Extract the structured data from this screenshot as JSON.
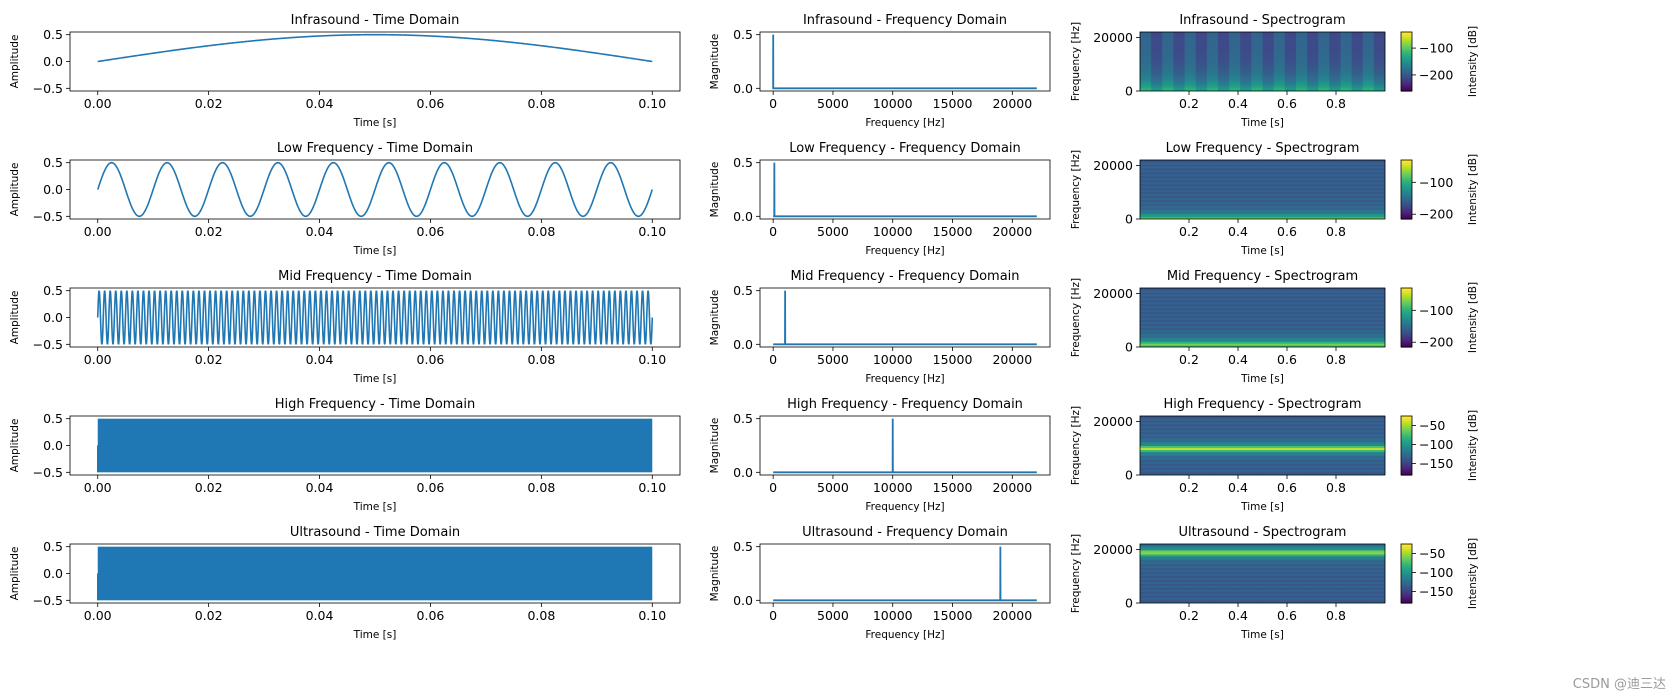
{
  "watermark": "CSDN @迪三达",
  "colors": {
    "line": "#1f77b4",
    "viridis": [
      "#440154",
      "#482878",
      "#3e4989",
      "#31688e",
      "#26828e",
      "#1f9e89",
      "#35b779",
      "#6ece58",
      "#b5de2b",
      "#fde725"
    ]
  },
  "chart_data": [
    {
      "type": "line",
      "title": "Infrasound - Time Domain",
      "xlabel": "Time [s]",
      "ylabel": "Amplitude",
      "signal": {
        "freq_hz": 5,
        "amplitude": 0.5,
        "duration_s": 0.1
      },
      "xlim": [
        -0.005,
        0.105
      ],
      "ylim": [
        -0.55,
        0.55
      ],
      "xticks": [
        0,
        0.02,
        0.04,
        0.06,
        0.08,
        0.1
      ],
      "xtick_labels": [
        "0.00",
        "0.02",
        "0.04",
        "0.06",
        "0.08",
        "0.10"
      ],
      "yticks": [
        -0.5,
        0,
        0.5
      ],
      "ytick_labels": [
        "−0.5",
        "0.0",
        "0.5"
      ]
    },
    {
      "type": "line",
      "title": "Infrasound - Frequency Domain",
      "xlabel": "Frequency [Hz]",
      "ylabel": "Magnitude",
      "x": [
        0,
        5,
        10,
        22050
      ],
      "y": [
        0,
        0.5,
        0,
        0
      ],
      "xlim": [
        -1100,
        23150
      ],
      "ylim": [
        -0.025,
        0.525
      ],
      "xticks": [
        0,
        5000,
        10000,
        15000,
        20000
      ],
      "xtick_labels": [
        "0",
        "5000",
        "10000",
        "15000",
        "20000"
      ],
      "yticks": [
        0,
        0.5
      ],
      "ytick_labels": [
        "0.0",
        "0.5"
      ]
    },
    {
      "type": "heatmap",
      "title": "Infrasound - Spectrogram",
      "xlabel": "Time [s]",
      "ylabel": "Frequency [Hz]",
      "colorbar_label": "Intensity [dB]",
      "xlim": [
        0,
        1
      ],
      "ylim": [
        0,
        22050
      ],
      "xticks": [
        0.2,
        0.4,
        0.6,
        0.8
      ],
      "xtick_labels": [
        "0.2",
        "0.4",
        "0.6",
        "0.8"
      ],
      "yticks": [
        0,
        20000
      ],
      "ytick_labels": [
        "0",
        "20000"
      ],
      "cbar_range": [
        -260,
        -40
      ],
      "cbar_ticks": [
        -100,
        -200
      ],
      "cbar_tick_labels": [
        "−100",
        "−200"
      ],
      "band_hz": 0,
      "pattern": "infra"
    },
    {
      "type": "line",
      "title": "Low Frequency - Time Domain",
      "xlabel": "Time [s]",
      "ylabel": "Amplitude",
      "signal": {
        "freq_hz": 100,
        "amplitude": 0.5,
        "duration_s": 0.1
      },
      "xlim": [
        -0.005,
        0.105
      ],
      "ylim": [
        -0.55,
        0.55
      ],
      "xticks": [
        0,
        0.02,
        0.04,
        0.06,
        0.08,
        0.1
      ],
      "xtick_labels": [
        "0.00",
        "0.02",
        "0.04",
        "0.06",
        "0.08",
        "0.10"
      ],
      "yticks": [
        -0.5,
        0,
        0.5
      ],
      "ytick_labels": [
        "−0.5",
        "0.0",
        "0.5"
      ]
    },
    {
      "type": "line",
      "title": "Low Frequency - Frequency Domain",
      "xlabel": "Frequency [Hz]",
      "ylabel": "Magnitude",
      "x": [
        0,
        90,
        100,
        110,
        22050
      ],
      "y": [
        0,
        0,
        0.5,
        0,
        0
      ],
      "xlim": [
        -1100,
        23150
      ],
      "ylim": [
        -0.025,
        0.525
      ],
      "xticks": [
        0,
        5000,
        10000,
        15000,
        20000
      ],
      "xtick_labels": [
        "0",
        "5000",
        "10000",
        "15000",
        "20000"
      ],
      "yticks": [
        0,
        0.5
      ],
      "ytick_labels": [
        "0.0",
        "0.5"
      ]
    },
    {
      "type": "heatmap",
      "title": "Low Frequency - Spectrogram",
      "xlabel": "Time [s]",
      "ylabel": "Frequency [Hz]",
      "colorbar_label": "Intensity [dB]",
      "xlim": [
        0,
        1
      ],
      "ylim": [
        0,
        22050
      ],
      "xticks": [
        0.2,
        0.4,
        0.6,
        0.8
      ],
      "xtick_labels": [
        "0.2",
        "0.4",
        "0.6",
        "0.8"
      ],
      "yticks": [
        0,
        20000
      ],
      "ytick_labels": [
        "0",
        "20000"
      ],
      "cbar_range": [
        -215,
        -30
      ],
      "cbar_ticks": [
        -100,
        -200
      ],
      "cbar_tick_labels": [
        "−100",
        "−200"
      ],
      "band_hz": 100,
      "pattern": "low"
    },
    {
      "type": "line",
      "title": "Mid Frequency - Time Domain",
      "xlabel": "Time [s]",
      "ylabel": "Amplitude",
      "signal": {
        "freq_hz": 1000,
        "amplitude": 0.5,
        "duration_s": 0.1
      },
      "xlim": [
        -0.005,
        0.105
      ],
      "ylim": [
        -0.55,
        0.55
      ],
      "xticks": [
        0,
        0.02,
        0.04,
        0.06,
        0.08,
        0.1
      ],
      "xtick_labels": [
        "0.00",
        "0.02",
        "0.04",
        "0.06",
        "0.08",
        "0.10"
      ],
      "yticks": [
        -0.5,
        0,
        0.5
      ],
      "ytick_labels": [
        "−0.5",
        "0.0",
        "0.5"
      ]
    },
    {
      "type": "line",
      "title": "Mid Frequency - Frequency Domain",
      "xlabel": "Frequency [Hz]",
      "ylabel": "Magnitude",
      "x": [
        0,
        990,
        1000,
        1010,
        22050
      ],
      "y": [
        0,
        0,
        0.5,
        0,
        0
      ],
      "xlim": [
        -1100,
        23150
      ],
      "ylim": [
        -0.025,
        0.525
      ],
      "xticks": [
        0,
        5000,
        10000,
        15000,
        20000
      ],
      "xtick_labels": [
        "0",
        "5000",
        "10000",
        "15000",
        "20000"
      ],
      "yticks": [
        0,
        0.5
      ],
      "ytick_labels": [
        "0.0",
        "0.5"
      ]
    },
    {
      "type": "heatmap",
      "title": "Mid Frequency - Spectrogram",
      "xlabel": "Time [s]",
      "ylabel": "Frequency [Hz]",
      "colorbar_label": "Intensity [dB]",
      "xlim": [
        0,
        1
      ],
      "ylim": [
        0,
        22050
      ],
      "xticks": [
        0.2,
        0.4,
        0.6,
        0.8
      ],
      "xtick_labels": [
        "0.2",
        "0.4",
        "0.6",
        "0.8"
      ],
      "yticks": [
        0,
        20000
      ],
      "ytick_labels": [
        "0",
        "20000"
      ],
      "cbar_range": [
        -215,
        -30
      ],
      "cbar_ticks": [
        -100,
        -200
      ],
      "cbar_tick_labels": [
        "−100",
        "−200"
      ],
      "band_hz": 1000,
      "pattern": "mid"
    },
    {
      "type": "line",
      "title": "High Frequency - Time Domain",
      "xlabel": "Time [s]",
      "ylabel": "Amplitude",
      "signal": {
        "freq_hz": 10000,
        "amplitude": 0.5,
        "duration_s": 0.1
      },
      "xlim": [
        -0.005,
        0.105
      ],
      "ylim": [
        -0.55,
        0.55
      ],
      "xticks": [
        0,
        0.02,
        0.04,
        0.06,
        0.08,
        0.1
      ],
      "xtick_labels": [
        "0.00",
        "0.02",
        "0.04",
        "0.06",
        "0.08",
        "0.10"
      ],
      "yticks": [
        -0.5,
        0,
        0.5
      ],
      "ytick_labels": [
        "−0.5",
        "0.0",
        "0.5"
      ]
    },
    {
      "type": "line",
      "title": "High Frequency - Frequency Domain",
      "xlabel": "Frequency [Hz]",
      "ylabel": "Magnitude",
      "x": [
        0,
        9990,
        10000,
        10010,
        22050
      ],
      "y": [
        0,
        0,
        0.5,
        0,
        0
      ],
      "xlim": [
        -1100,
        23150
      ],
      "ylim": [
        -0.025,
        0.525
      ],
      "xticks": [
        0,
        5000,
        10000,
        15000,
        20000
      ],
      "xtick_labels": [
        "0",
        "5000",
        "10000",
        "15000",
        "20000"
      ],
      "yticks": [
        0,
        0.5
      ],
      "ytick_labels": [
        "0.0",
        "0.5"
      ]
    },
    {
      "type": "heatmap",
      "title": "High Frequency - Spectrogram",
      "xlabel": "Time [s]",
      "ylabel": "Frequency [Hz]",
      "colorbar_label": "Intensity [dB]",
      "xlim": [
        0,
        1
      ],
      "ylim": [
        0,
        22050
      ],
      "xticks": [
        0.2,
        0.4,
        0.6,
        0.8
      ],
      "xtick_labels": [
        "0.2",
        "0.4",
        "0.6",
        "0.8"
      ],
      "yticks": [
        0,
        20000
      ],
      "ytick_labels": [
        "0",
        "20000"
      ],
      "cbar_range": [
        -180,
        -25
      ],
      "cbar_ticks": [
        -50,
        -100,
        -150
      ],
      "cbar_tick_labels": [
        "−50",
        "−100",
        "−150"
      ],
      "band_hz": 10000,
      "pattern": "band"
    },
    {
      "type": "line",
      "title": "Ultrasound - Time Domain",
      "xlabel": "Time [s]",
      "ylabel": "Amplitude",
      "signal": {
        "freq_hz": 19000,
        "amplitude": 0.5,
        "duration_s": 0.1
      },
      "xlim": [
        -0.005,
        0.105
      ],
      "ylim": [
        -0.55,
        0.55
      ],
      "xticks": [
        0,
        0.02,
        0.04,
        0.06,
        0.08,
        0.1
      ],
      "xtick_labels": [
        "0.00",
        "0.02",
        "0.04",
        "0.06",
        "0.08",
        "0.10"
      ],
      "yticks": [
        -0.5,
        0,
        0.5
      ],
      "ytick_labels": [
        "−0.5",
        "0.0",
        "0.5"
      ]
    },
    {
      "type": "line",
      "title": "Ultrasound - Frequency Domain",
      "xlabel": "Frequency [Hz]",
      "ylabel": "Magnitude",
      "x": [
        0,
        18990,
        19000,
        19010,
        22050
      ],
      "y": [
        0,
        0,
        0.5,
        0,
        0
      ],
      "xlim": [
        -1100,
        23150
      ],
      "ylim": [
        -0.025,
        0.525
      ],
      "xticks": [
        0,
        5000,
        10000,
        15000,
        20000
      ],
      "xtick_labels": [
        "0",
        "5000",
        "10000",
        "15000",
        "20000"
      ],
      "yticks": [
        0,
        0.5
      ],
      "ytick_labels": [
        "0.0",
        "0.5"
      ]
    },
    {
      "type": "heatmap",
      "title": "Ultrasound - Spectrogram",
      "xlabel": "Time [s]",
      "ylabel": "Frequency [Hz]",
      "colorbar_label": "Intensity [dB]",
      "xlim": [
        0,
        1
      ],
      "ylim": [
        0,
        22050
      ],
      "xticks": [
        0.2,
        0.4,
        0.6,
        0.8
      ],
      "xtick_labels": [
        "0.2",
        "0.4",
        "0.6",
        "0.8"
      ],
      "yticks": [
        0,
        20000
      ],
      "ytick_labels": [
        "0",
        "20000"
      ],
      "cbar_range": [
        -180,
        -25
      ],
      "cbar_ticks": [
        -50,
        -100,
        -150
      ],
      "cbar_tick_labels": [
        "−50",
        "−100",
        "−150"
      ],
      "band_hz": 19000,
      "pattern": "band"
    }
  ]
}
